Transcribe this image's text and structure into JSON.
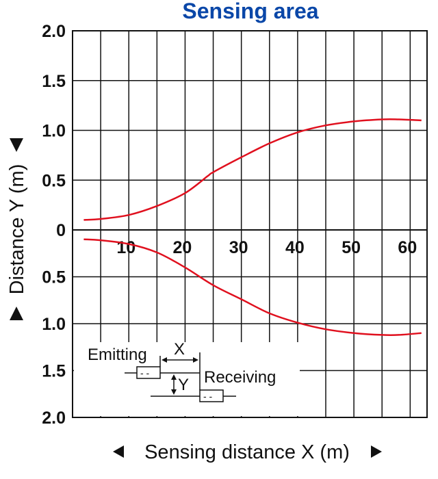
{
  "chart_data": {
    "type": "line",
    "title": "Sensing area",
    "xlabel": "Sensing distance X (m)",
    "ylabel": "Distance Y (m)",
    "x_tick_labels": [
      "10",
      "20",
      "30",
      "40",
      "50",
      "60"
    ],
    "y_tick_labels_upper": [
      "2.0",
      "1.5",
      "1.0",
      "0.5",
      "0"
    ],
    "y_tick_labels_lower": [
      "0.5",
      "1.0",
      "1.5",
      "2.0"
    ],
    "xlim": [
      0,
      63
    ],
    "ylim": [
      -2.0,
      2.0
    ],
    "grid": true,
    "line_color": "#e0101e",
    "series": [
      {
        "x": [
          2,
          5,
          10,
          15,
          20,
          24,
          25,
          30,
          35,
          40,
          45,
          50,
          55,
          58,
          62
        ],
        "y": [
          0.1,
          0.11,
          0.15,
          0.24,
          0.37,
          0.54,
          0.58,
          0.73,
          0.87,
          0.98,
          1.05,
          1.09,
          1.11,
          1.11,
          1.1
        ]
      },
      {
        "x": [
          2,
          5,
          10,
          15,
          20,
          25,
          30,
          35,
          40,
          45,
          50,
          55,
          58,
          62
        ],
        "y": [
          -0.1,
          -0.11,
          -0.15,
          -0.24,
          -0.4,
          -0.59,
          -0.74,
          -0.89,
          -0.99,
          -1.06,
          -1.1,
          -1.12,
          -1.12,
          -1.1
        ]
      }
    ],
    "legend": {
      "emitting_label": "Emitting",
      "receiving_label": "Receiving",
      "x_label": "X",
      "y_label": "Y",
      "dash_glyph": "- -"
    }
  }
}
